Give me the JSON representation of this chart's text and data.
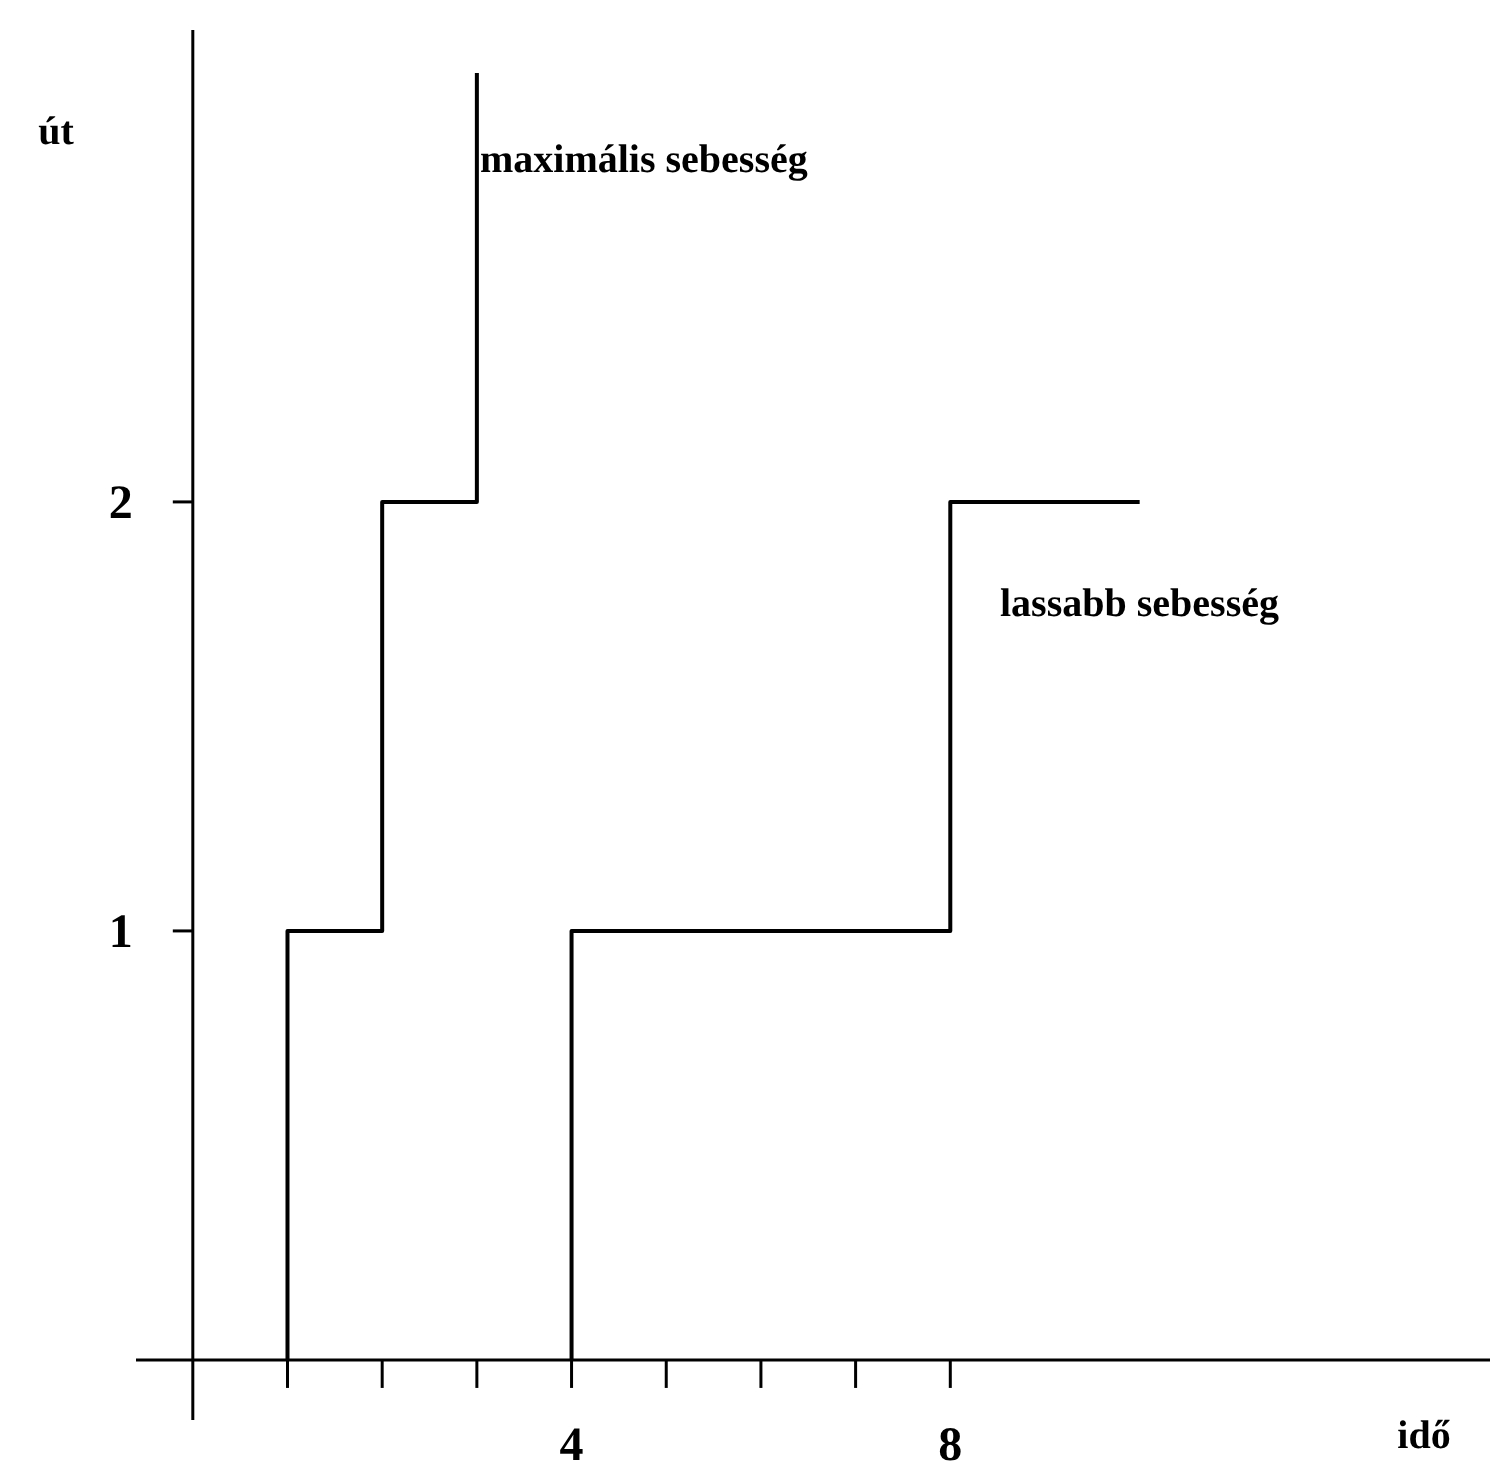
{
  "chart_data": {
    "type": "step",
    "xlabel": "idő",
    "ylabel": "út",
    "xlim": [
      -0.6,
      13.7
    ],
    "ylim": [
      -0.14,
      3.1
    ],
    "xticks": [
      {
        "value": 1,
        "label": null
      },
      {
        "value": 2,
        "label": null
      },
      {
        "value": 3,
        "label": null
      },
      4,
      {
        "value": 5,
        "label": null
      },
      {
        "value": 6,
        "label": null
      },
      {
        "value": 7,
        "label": null
      },
      8
    ],
    "yticks": [
      1,
      2
    ],
    "grid": false,
    "marker": "none",
    "line_style": "solid",
    "series": [
      {
        "name": "maximális sebesség",
        "color": "#000000",
        "x": [
          1,
          1,
          2,
          3
        ],
        "values": [
          0,
          1,
          2,
          3
        ]
      },
      {
        "name": "lassabb sebesség",
        "color": "#000000",
        "x": [
          4,
          4,
          8,
          10
        ],
        "values": [
          0,
          1,
          2,
          2
        ]
      }
    ]
  }
}
